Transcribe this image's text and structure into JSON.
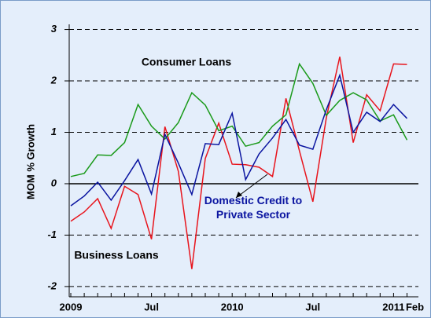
{
  "chart_data": {
    "type": "line",
    "y_label": "MOM % Growth",
    "categories": [
      "2009",
      null,
      null,
      null,
      null,
      null,
      "Jul",
      null,
      null,
      null,
      null,
      null,
      "2010",
      null,
      null,
      null,
      null,
      null,
      "Jul",
      null,
      null,
      null,
      null,
      null,
      "2011",
      "Feb"
    ],
    "series": [
      {
        "name": "Business Loans",
        "color": "#e8141c",
        "values": [
          -0.73,
          -0.55,
          -0.29,
          -0.87,
          -0.05,
          -0.21,
          -1.08,
          1.11,
          0.24,
          -1.66,
          0.49,
          1.18,
          0.38,
          0.37,
          0.32,
          0.14,
          1.66,
          0.64,
          -0.35,
          1.28,
          2.47,
          0.8,
          1.73,
          1.42,
          2.33,
          2.32
        ]
      },
      {
        "name": "Consumer Loans",
        "color": "#1a9a1a",
        "values": [
          0.14,
          0.2,
          0.56,
          0.55,
          0.8,
          1.54,
          1.12,
          0.87,
          1.19,
          1.77,
          1.53,
          1.03,
          1.12,
          0.73,
          0.8,
          1.12,
          1.34,
          2.33,
          1.95,
          1.33,
          1.62,
          1.77,
          1.63,
          1.22,
          1.34,
          0.85
        ]
      },
      {
        "name": "Domestic Credit to Private Sector",
        "color": "#0a14a0",
        "values": [
          -0.43,
          -0.24,
          0.03,
          -0.32,
          0.06,
          0.47,
          -0.2,
          0.96,
          0.4,
          -0.21,
          0.78,
          0.76,
          1.37,
          0.08,
          0.58,
          0.89,
          1.25,
          0.75,
          0.67,
          1.44,
          2.11,
          1.0,
          1.39,
          1.21,
          1.54,
          1.27
        ]
      }
    ],
    "ylim": [
      -2.2,
      3.1
    ],
    "yticks": [
      -2,
      -1,
      0,
      1,
      2,
      3
    ],
    "grid": true
  }
}
